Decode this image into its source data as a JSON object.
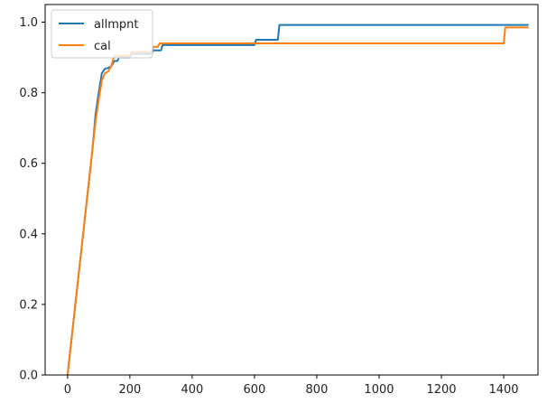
{
  "chart_data": {
    "type": "line",
    "title": "",
    "xlabel": "",
    "ylabel": "",
    "xlim": [
      -72,
      1510
    ],
    "ylim": [
      0.0,
      1.05
    ],
    "xticks": [
      0,
      200,
      400,
      600,
      800,
      1000,
      1200,
      1400
    ],
    "xtick_labels": [
      "0",
      "200",
      "400",
      "600",
      "800",
      "1000",
      "1200",
      "1400"
    ],
    "yticks": [
      0.0,
      0.2,
      0.4,
      0.6,
      0.8,
      1.0
    ],
    "ytick_labels": [
      "0.0",
      "0.2",
      "0.4",
      "0.6",
      "0.8",
      "1.0"
    ],
    "grid": false,
    "legend_position": "top-left",
    "series": [
      {
        "name": "allmpnt",
        "color": "#1f77b4",
        "points": [
          [
            0,
            0.0
          ],
          [
            10,
            0.08
          ],
          [
            20,
            0.16
          ],
          [
            30,
            0.24
          ],
          [
            40,
            0.32
          ],
          [
            50,
            0.4
          ],
          [
            60,
            0.48
          ],
          [
            70,
            0.56
          ],
          [
            80,
            0.64
          ],
          [
            90,
            0.74
          ],
          [
            100,
            0.8
          ],
          [
            110,
            0.855
          ],
          [
            120,
            0.868
          ],
          [
            130,
            0.87
          ],
          [
            140,
            0.875
          ],
          [
            150,
            0.89
          ],
          [
            160,
            0.89
          ],
          [
            165,
            0.9
          ],
          [
            200,
            0.9
          ],
          [
            205,
            0.91
          ],
          [
            270,
            0.91
          ],
          [
            275,
            0.92
          ],
          [
            300,
            0.92
          ],
          [
            305,
            0.935
          ],
          [
            600,
            0.935
          ],
          [
            605,
            0.95
          ],
          [
            675,
            0.95
          ],
          [
            680,
            0.992
          ],
          [
            1480,
            0.992
          ]
        ]
      },
      {
        "name": "cal",
        "color": "#ff7f0e",
        "points": [
          [
            0,
            0.0
          ],
          [
            10,
            0.08
          ],
          [
            20,
            0.16
          ],
          [
            30,
            0.24
          ],
          [
            40,
            0.32
          ],
          [
            50,
            0.4
          ],
          [
            60,
            0.48
          ],
          [
            70,
            0.56
          ],
          [
            80,
            0.64
          ],
          [
            90,
            0.72
          ],
          [
            100,
            0.78
          ],
          [
            110,
            0.835
          ],
          [
            120,
            0.855
          ],
          [
            130,
            0.86
          ],
          [
            140,
            0.875
          ],
          [
            150,
            0.905
          ],
          [
            200,
            0.905
          ],
          [
            205,
            0.915
          ],
          [
            270,
            0.915
          ],
          [
            275,
            0.93
          ],
          [
            290,
            0.93
          ],
          [
            295,
            0.94
          ],
          [
            1400,
            0.94
          ],
          [
            1405,
            0.985
          ],
          [
            1480,
            0.985
          ]
        ]
      }
    ]
  }
}
